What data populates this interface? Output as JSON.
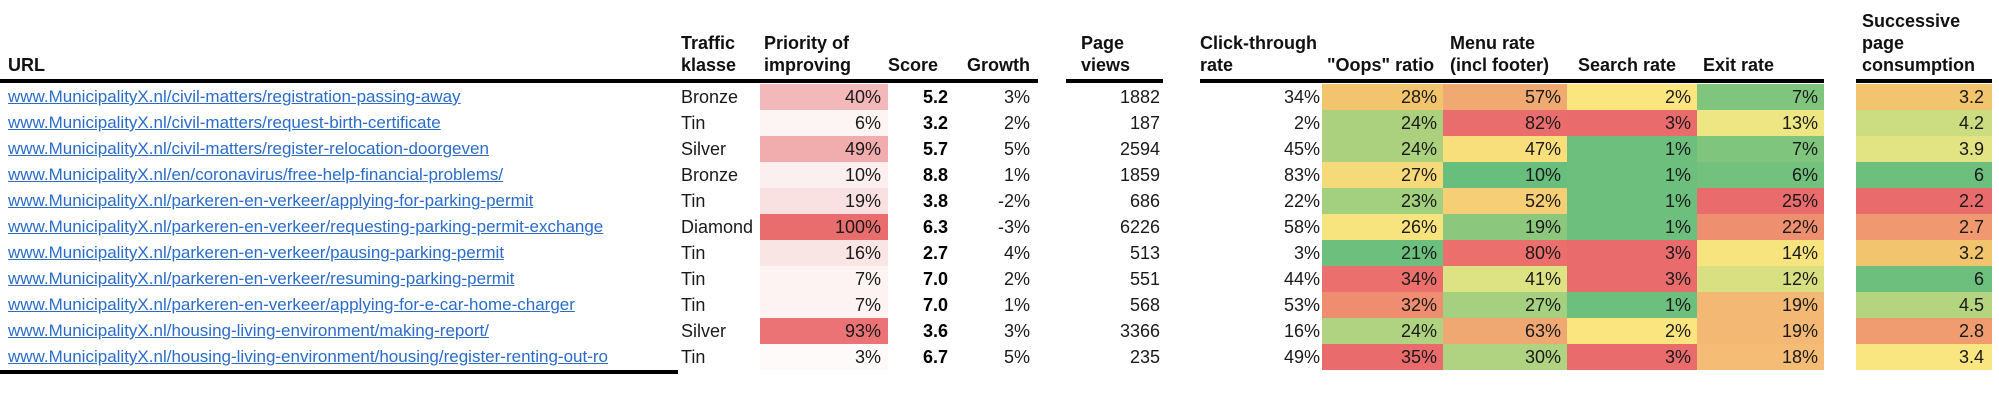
{
  "table": {
    "headers": {
      "url": "URL",
      "traffic": "Traffic klasse",
      "priority": "Priority of improving",
      "score": "Score",
      "growth": "Growth",
      "page_views": "Page views",
      "ctr": "Click-through rate",
      "oops": "\"Oops\" ratio",
      "menu": "Menu rate (incl footer)",
      "search": "Search rate",
      "exit": "Exit rate",
      "succ": "Successive page consumption"
    },
    "link_color": "#2B6CC9",
    "rows": [
      {
        "url": "www.MunicipalityX.nl/civil-matters/registration-passing-away",
        "traffic": "Bronze",
        "priority": "40%",
        "priority_color": "#F3B8B9",
        "score": "5.2",
        "growth": "3%",
        "page_views": "1882",
        "ctr": "34%",
        "oops": "28%",
        "oops_color": "#F2C46E",
        "menu": "57%",
        "menu_color": "#F0A971",
        "search": "2%",
        "search_color": "#FAE57F",
        "exit": "7%",
        "exit_color": "#7FC57D",
        "succ": "3.2",
        "succ_color": "#F2C46E"
      },
      {
        "url": "www.MunicipalityX.nl/civil-matters/request-birth-certificate",
        "traffic": "Tin",
        "priority": "6%",
        "priority_color": "#FDF4F4",
        "score": "3.2",
        "growth": "2%",
        "page_views": "187",
        "ctr": "2%",
        "oops": "24%",
        "oops_color": "#ABD17F",
        "menu": "82%",
        "menu_color": "#EA6D6D",
        "search": "3%",
        "search_color": "#E96B6C",
        "exit": "13%",
        "exit_color": "#EEE682",
        "succ": "4.2",
        "succ_color": "#CCDC81"
      },
      {
        "url": "www.MunicipalityX.nl/civil-matters/register-relocation-doorgeven",
        "traffic": "Silver",
        "priority": "49%",
        "priority_color": "#F1ACAE",
        "score": "5.7",
        "growth": "5%",
        "page_views": "2594",
        "ctr": "45%",
        "oops": "24%",
        "oops_color": "#ABD17F",
        "menu": "47%",
        "menu_color": "#F8DF7C",
        "search": "1%",
        "search_color": "#6DBF7D",
        "exit": "7%",
        "exit_color": "#7FC57D",
        "succ": "3.9",
        "succ_color": "#E2E383"
      },
      {
        "url": "www.MunicipalityX.nl/en/coronavirus/free-help-financial-problems/",
        "traffic": "Bronze",
        "priority": "10%",
        "priority_color": "#FCEFEF",
        "score": "8.8",
        "growth": "1%",
        "page_views": "1859",
        "ctr": "83%",
        "oops": "27%",
        "oops_color": "#F6D979",
        "menu": "10%",
        "menu_color": "#68BE7C",
        "search": "1%",
        "search_color": "#6DBF7D",
        "exit": "6%",
        "exit_color": "#72C17C",
        "succ": "6",
        "succ_color": "#6CBF7D"
      },
      {
        "url": "www.MunicipalityX.nl/parkeren-en-verkeer/applying-for-parking-permit",
        "traffic": "Tin",
        "priority": "19%",
        "priority_color": "#F9E1E1",
        "score": "3.8",
        "growth": "-2%",
        "page_views": "686",
        "ctr": "22%",
        "oops": "23%",
        "oops_color": "#A3D07E",
        "menu": "52%",
        "menu_color": "#F6CE76",
        "search": "1%",
        "search_color": "#6DBF7D",
        "exit": "25%",
        "exit_color": "#E96B6C",
        "succ": "2.2",
        "succ_color": "#EA6B6C"
      },
      {
        "url": "www.MunicipalityX.nl/parkeren-en-verkeer/requesting-parking-permit-exchange",
        "traffic": "Diamond",
        "priority": "100%",
        "priority_color": "#EA6D6E",
        "score": "6.3",
        "growth": "-3%",
        "page_views": "6226",
        "ctr": "58%",
        "oops": "26%",
        "oops_color": "#F8E47E",
        "menu": "19%",
        "menu_color": "#8BC87E",
        "search": "1%",
        "search_color": "#6DBF7D",
        "exit": "22%",
        "exit_color": "#EE8F70",
        "succ": "2.7",
        "succ_color": "#F0986F"
      },
      {
        "url": "www.MunicipalityX.nl/parkeren-en-verkeer/pausing-parking-permit",
        "traffic": "Tin",
        "priority": "16%",
        "priority_color": "#FAE5E5",
        "score": "2.7",
        "growth": "4%",
        "page_views": "513",
        "ctr": "3%",
        "oops": "21%",
        "oops_color": "#6CBF7D",
        "menu": "80%",
        "menu_color": "#EB6F6D",
        "search": "3%",
        "search_color": "#E96B6C",
        "exit": "14%",
        "exit_color": "#F8E47E",
        "succ": "3.2",
        "succ_color": "#F2C46E"
      },
      {
        "url": "www.MunicipalityX.nl/parkeren-en-verkeer/resuming-parking-permit",
        "traffic": "Tin",
        "priority": "7%",
        "priority_color": "#FDF3F3",
        "score": "7.0",
        "growth": "2%",
        "page_views": "551",
        "ctr": "44%",
        "oops": "34%",
        "oops_color": "#EB6F6D",
        "menu": "41%",
        "menu_color": "#DDE283",
        "search": "3%",
        "search_color": "#E96B6C",
        "exit": "12%",
        "exit_color": "#D8E081",
        "succ": "6",
        "succ_color": "#6CBF7D"
      },
      {
        "url": "www.MunicipalityX.nl/parkeren-en-verkeer/applying-for-e-car-home-charger",
        "traffic": "Tin",
        "priority": "7%",
        "priority_color": "#FDF3F3",
        "score": "7.0",
        "growth": "1%",
        "page_views": "568",
        "ctr": "53%",
        "oops": "32%",
        "oops_color": "#EF8D70",
        "menu": "27%",
        "menu_color": "#A5D07F",
        "search": "1%",
        "search_color": "#6DBF7D",
        "exit": "19%",
        "exit_color": "#F3B873",
        "succ": "4.5",
        "succ_color": "#B5D480"
      },
      {
        "url": "www.MunicipalityX.nl/housing-living-environment/making-report/",
        "traffic": "Silver",
        "priority": "93%",
        "priority_color": "#EB7375",
        "score": "3.6",
        "growth": "3%",
        "page_views": "3366",
        "ctr": "16%",
        "oops": "24%",
        "oops_color": "#AFD380",
        "menu": "63%",
        "menu_color": "#F0A873",
        "search": "2%",
        "search_color": "#FAE57F",
        "exit": "19%",
        "exit_color": "#F3B873",
        "succ": "2.8",
        "succ_color": "#F09C70"
      },
      {
        "url": "www.MunicipalityX.nl/housing-living-environment/housing/register-renting-out-ro",
        "traffic": "Tin",
        "priority": "3%",
        "priority_color": "#FEFAFA",
        "score": "6.7",
        "growth": "5%",
        "page_views": "235",
        "ctr": "49%",
        "oops": "35%",
        "oops_color": "#EA6B6C",
        "menu": "30%",
        "menu_color": "#AFD380",
        "search": "3%",
        "search_color": "#E96B6C",
        "exit": "18%",
        "exit_color": "#F4BC74",
        "succ": "3.4",
        "succ_color": "#F9E680"
      }
    ]
  }
}
